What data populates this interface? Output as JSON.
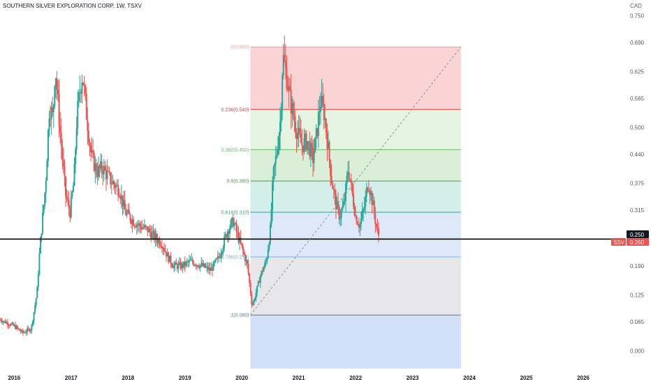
{
  "header": {
    "title": "SOUTHERN SILVER EXPLORATION CORP, 1W, TSXV",
    "currency": "CAD"
  },
  "price_badges": {
    "last": "0.250",
    "symbol": "SSV",
    "symbol_price": "0.250"
  },
  "colors": {
    "up": "#26a69a",
    "down": "#ef5350",
    "horizontal_line": "#000000"
  },
  "chart_data": {
    "type": "candlestick",
    "title": "SOUTHERN SILVER EXPLORATION CORP, 1W, TSXV",
    "ylabel": "CAD",
    "ylim": [
      -0.04,
      0.76
    ],
    "y_ticks": [
      "0.750",
      "0.690",
      "0.625",
      "0.565",
      "0.500",
      "0.440",
      "0.375",
      "0.315",
      "0.250",
      "0.190",
      "0.125",
      "0.065",
      "0.000"
    ],
    "x_ticks": [
      "2016",
      "2017",
      "2018",
      "2019",
      "2020",
      "2021",
      "2022",
      "2023",
      "2024",
      "2025",
      "2026"
    ],
    "x_range": [
      2015.75,
      2026.7
    ],
    "horizontal_line": 0.25,
    "last_price": 0.25,
    "fibonacci": {
      "start": {
        "time": 2020.15,
        "price": 0.08
      },
      "end": {
        "time": 2023.85,
        "price": 0.68
      },
      "levels": [
        {
          "label": "0(0.680)",
          "price": 0.68,
          "color": "#ef9a9a"
        },
        {
          "label": "0.236(0.540)",
          "price": 0.54,
          "color": "#e53935"
        },
        {
          "label": "0.382(0.450)",
          "price": 0.45,
          "color": "#66bb6a"
        },
        {
          "label": "0.5(0.380)",
          "price": 0.38,
          "color": "#43a047"
        },
        {
          "label": "0.618(0.310)",
          "price": 0.31,
          "color": "#26a69a"
        },
        {
          "label": "0.786(0.210)",
          "price": 0.21,
          "color": "#64b5f6"
        },
        {
          "label": "1(0.080)",
          "price": 0.08,
          "color": "#607d8b"
        }
      ],
      "zones": [
        {
          "from": 0.68,
          "to": 0.54,
          "color": "#fad4d4"
        },
        {
          "from": 0.54,
          "to": 0.45,
          "color": "#e4f4e1"
        },
        {
          "from": 0.45,
          "to": 0.38,
          "color": "#dbefd8"
        },
        {
          "from": 0.38,
          "to": 0.31,
          "color": "#d4eee9"
        },
        {
          "from": 0.31,
          "to": 0.21,
          "color": "#dde9f8"
        },
        {
          "from": 0.21,
          "to": 0.08,
          "color": "#e7e7ea"
        },
        {
          "from": 0.08,
          "to": -0.04,
          "color": "#d3e0fa"
        }
      ]
    },
    "price_path": [
      [
        2015.75,
        0.07
      ],
      [
        2016.0,
        0.055
      ],
      [
        2016.15,
        0.04
      ],
      [
        2016.3,
        0.05
      ],
      [
        2016.4,
        0.13
      ],
      [
        2016.45,
        0.23
      ],
      [
        2016.55,
        0.37
      ],
      [
        2016.62,
        0.55
      ],
      [
        2016.68,
        0.52
      ],
      [
        2016.72,
        0.64
      ],
      [
        2016.8,
        0.5
      ],
      [
        2016.9,
        0.35
      ],
      [
        2016.98,
        0.31
      ],
      [
        2017.05,
        0.38
      ],
      [
        2017.1,
        0.52
      ],
      [
        2017.15,
        0.58
      ],
      [
        2017.2,
        0.62
      ],
      [
        2017.27,
        0.53
      ],
      [
        2017.35,
        0.44
      ],
      [
        2017.45,
        0.4
      ],
      [
        2017.55,
        0.41
      ],
      [
        2017.7,
        0.38
      ],
      [
        2017.85,
        0.36
      ],
      [
        2017.95,
        0.31
      ],
      [
        2018.1,
        0.29
      ],
      [
        2018.2,
        0.28
      ],
      [
        2018.35,
        0.27
      ],
      [
        2018.5,
        0.25
      ],
      [
        2018.6,
        0.24
      ],
      [
        2018.7,
        0.21
      ],
      [
        2018.8,
        0.19
      ],
      [
        2018.95,
        0.19
      ],
      [
        2019.1,
        0.2
      ],
      [
        2019.3,
        0.19
      ],
      [
        2019.45,
        0.18
      ],
      [
        2019.6,
        0.21
      ],
      [
        2019.75,
        0.27
      ],
      [
        2019.85,
        0.29
      ],
      [
        2019.92,
        0.26
      ],
      [
        2020.0,
        0.23
      ],
      [
        2020.1,
        0.19
      ],
      [
        2020.18,
        0.1
      ],
      [
        2020.23,
        0.12
      ],
      [
        2020.33,
        0.17
      ],
      [
        2020.43,
        0.2
      ],
      [
        2020.5,
        0.27
      ],
      [
        2020.55,
        0.39
      ],
      [
        2020.62,
        0.45
      ],
      [
        2020.68,
        0.52
      ],
      [
        2020.72,
        0.66
      ],
      [
        2020.78,
        0.62
      ],
      [
        2020.85,
        0.56
      ],
      [
        2020.95,
        0.5
      ],
      [
        2021.05,
        0.46
      ],
      [
        2021.15,
        0.47
      ],
      [
        2021.25,
        0.43
      ],
      [
        2021.32,
        0.49
      ],
      [
        2021.38,
        0.56
      ],
      [
        2021.45,
        0.53
      ],
      [
        2021.52,
        0.45
      ],
      [
        2021.58,
        0.38
      ],
      [
        2021.65,
        0.33
      ],
      [
        2021.72,
        0.3
      ],
      [
        2021.8,
        0.33
      ],
      [
        2021.87,
        0.41
      ],
      [
        2021.93,
        0.36
      ],
      [
        2022.0,
        0.3
      ],
      [
        2022.07,
        0.28
      ],
      [
        2022.15,
        0.32
      ],
      [
        2022.22,
        0.38
      ],
      [
        2022.3,
        0.33
      ],
      [
        2022.36,
        0.28
      ],
      [
        2022.42,
        0.25
      ]
    ]
  }
}
